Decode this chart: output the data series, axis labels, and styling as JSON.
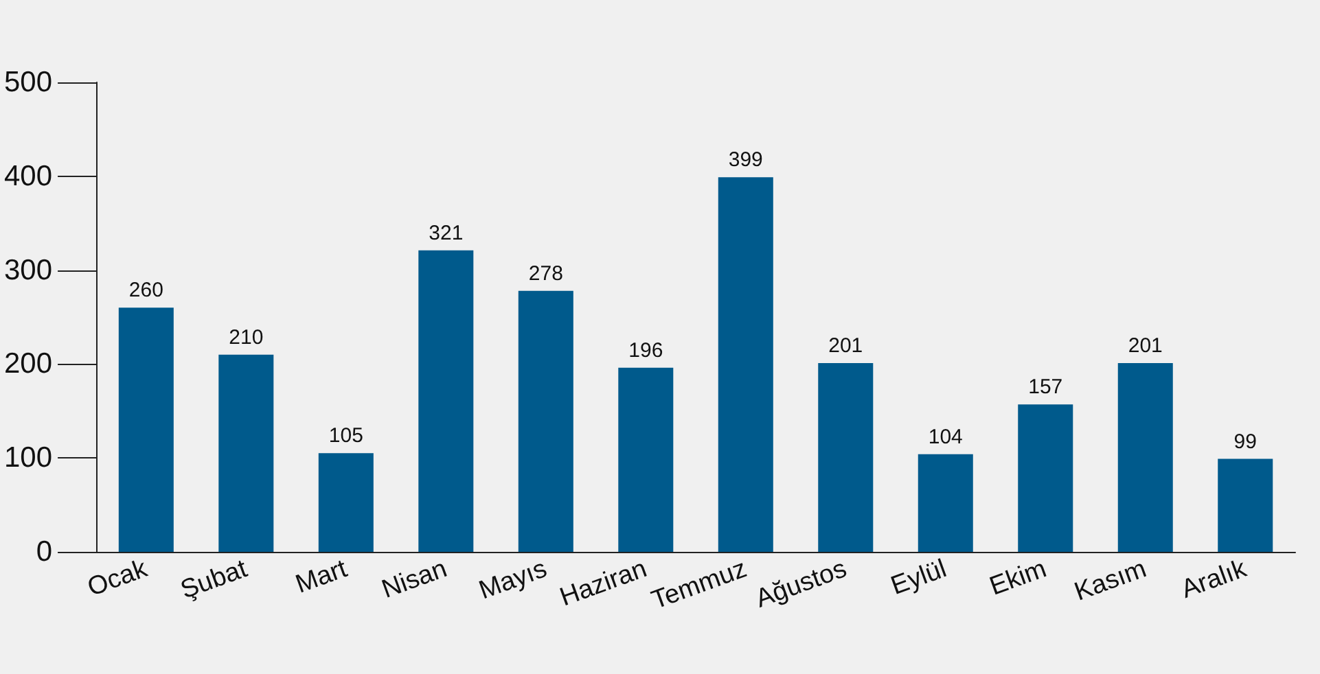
{
  "chart_data": {
    "type": "bar",
    "categories": [
      "Ocak",
      "Şubat",
      "Mart",
      "Nisan",
      "Mayıs",
      "Haziran",
      "Temmuz",
      "Ağustos",
      "Eylül",
      "Ekim",
      "Kasım",
      "Aralık"
    ],
    "values": [
      260,
      210,
      105,
      321,
      278,
      196,
      399,
      201,
      104,
      157,
      201,
      99
    ],
    "color": "#005a8c",
    "ylim": [
      0,
      500
    ],
    "yticks": [
      0,
      100,
      200,
      300,
      400,
      500
    ],
    "data_labels": true,
    "grid": false
  }
}
